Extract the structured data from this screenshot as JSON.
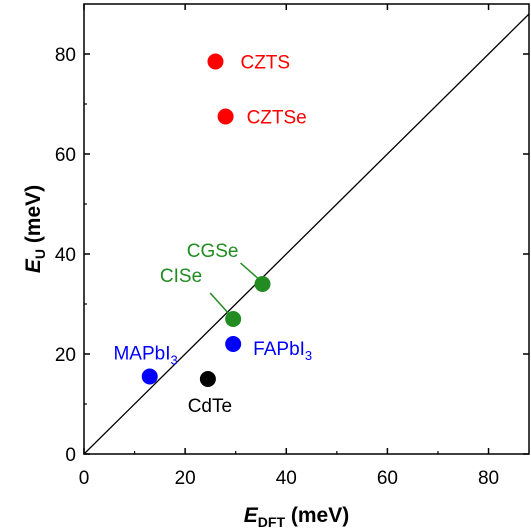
{
  "chart_data": {
    "type": "scatter",
    "xlabel": {
      "main": "E",
      "sub": "DFT",
      "rest": " (meV)"
    },
    "ylabel": {
      "main": "E",
      "sub": "U",
      "rest": " (meV)"
    },
    "xlim": [
      0,
      88
    ],
    "ylim": [
      0,
      90
    ],
    "xticks": [
      0,
      20,
      40,
      60,
      80
    ],
    "yticks": [
      0,
      20,
      40,
      60,
      80
    ],
    "grid": false,
    "reference_line": "y = x",
    "points": [
      {
        "label": "CZTS",
        "sub": "",
        "x": 26.0,
        "y": 78.5,
        "color": "#ff0000"
      },
      {
        "label": "CZTSe",
        "sub": "",
        "x": 28.0,
        "y": 67.5,
        "color": "#ff0000"
      },
      {
        "label": "CGSe",
        "sub": "",
        "x": 35.3,
        "y": 34.0,
        "color": "#228b22"
      },
      {
        "label": "CISe",
        "sub": "",
        "x": 29.5,
        "y": 27.0,
        "color": "#228b22"
      },
      {
        "label": "FAPbI",
        "sub": "3",
        "x": 29.5,
        "y": 22.0,
        "color": "#0000ff"
      },
      {
        "label": "MAPbI",
        "sub": "3",
        "x": 13.0,
        "y": 15.5,
        "color": "#0000ff"
      },
      {
        "label": "CdTe",
        "sub": "",
        "x": 24.5,
        "y": 15.0,
        "color": "#000000"
      }
    ]
  }
}
